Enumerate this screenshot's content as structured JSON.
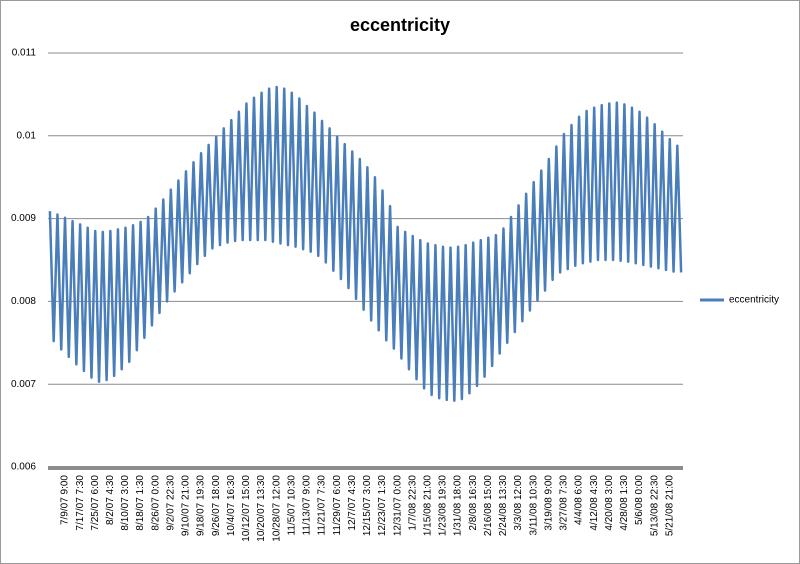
{
  "chart_data": {
    "type": "line",
    "title": "eccentricity",
    "categories": [
      null,
      null,
      null,
      null,
      "7/9/07 9:00",
      null,
      null,
      null,
      "7/17/07 7:30",
      null,
      null,
      null,
      "7/25/07 6:00",
      null,
      null,
      null,
      "8/2/07 4:30",
      null,
      null,
      null,
      "8/10/07 3:00",
      null,
      null,
      null,
      "8/18/07 1:30",
      null,
      null,
      null,
      "8/26/07 0:00",
      null,
      null,
      null,
      "9/2/07 22:30",
      null,
      null,
      null,
      "9/10/07 21:00",
      null,
      null,
      null,
      "9/18/07 19:30",
      null,
      null,
      null,
      "9/26/07 18:00",
      null,
      null,
      null,
      "10/4/07 16:30",
      null,
      null,
      null,
      "10/12/07 15:00",
      null,
      null,
      null,
      "10/20/07 13:30",
      null,
      null,
      null,
      "10/28/07 12:00",
      null,
      null,
      null,
      "11/5/07 10:30",
      null,
      null,
      null,
      "11/13/07 9:00",
      null,
      null,
      null,
      "11/21/07 7:30",
      null,
      null,
      null,
      "11/29/07 6:00",
      null,
      null,
      null,
      "12/7/07 4:30",
      null,
      null,
      null,
      "12/15/07 3:00",
      null,
      null,
      null,
      "12/23/07 1:30",
      null,
      null,
      null,
      "12/31/07 0:00",
      null,
      null,
      null,
      "1/7/08 22:30",
      null,
      null,
      null,
      "1/15/08 21:00",
      null,
      null,
      null,
      "1/23/08 19:30",
      null,
      null,
      null,
      "1/31/08 18:00",
      null,
      null,
      null,
      "2/8/08 16:30",
      null,
      null,
      null,
      "2/16/08 15:00",
      null,
      null,
      null,
      "2/24/08 13:30",
      null,
      null,
      null,
      "3/3/08 12:00",
      null,
      null,
      null,
      "3/11/08 10:30",
      null,
      null,
      null,
      "3/19/08 9:00",
      null,
      null,
      null,
      "3/27/08 7:30",
      null,
      null,
      null,
      "4/4/08 6:00",
      null,
      null,
      null,
      "4/12/08 4:30",
      null,
      null,
      null,
      "4/20/08 3:00",
      null,
      null,
      null,
      "4/28/08 1:30",
      null,
      null,
      null,
      "5/6/08 0:00",
      null,
      null,
      null,
      "5/13/08 22:30",
      null,
      null,
      null,
      "5/21/08 21:00",
      null,
      null,
      null
    ],
    "series": [
      {
        "name": "eccentricity",
        "color": "#4a7ebb",
        "values": [
          0.00909,
          0.00752,
          0.00905,
          0.00742,
          0.00901,
          0.00733,
          0.00897,
          0.00724,
          0.00893,
          0.00716,
          0.00889,
          0.00708,
          0.00885,
          0.00703,
          0.00884,
          0.00705,
          0.00885,
          0.0071,
          0.00887,
          0.00718,
          0.00889,
          0.00727,
          0.00892,
          0.00741,
          0.00896,
          0.00756,
          0.00902,
          0.00771,
          0.00912,
          0.00786,
          0.00923,
          0.008,
          0.00935,
          0.00812,
          0.00946,
          0.00823,
          0.00957,
          0.00834,
          0.00968,
          0.00845,
          0.00979,
          0.00855,
          0.00989,
          0.00864,
          0.00999,
          0.00868,
          0.01009,
          0.00871,
          0.01019,
          0.00873,
          0.01029,
          0.00874,
          0.01039,
          0.00874,
          0.01046,
          0.00874,
          0.01052,
          0.00874,
          0.01057,
          0.00872,
          0.01059,
          0.0087,
          0.01057,
          0.00868,
          0.01052,
          0.00866,
          0.01045,
          0.00863,
          0.01036,
          0.0086,
          0.01028,
          0.00855,
          0.01018,
          0.00847,
          0.01009,
          0.00837,
          0.00999,
          0.00827,
          0.0099,
          0.00816,
          0.00981,
          0.00803,
          0.00972,
          0.0079,
          0.00962,
          0.00777,
          0.0095,
          0.00765,
          0.00934,
          0.00753,
          0.00915,
          0.00743,
          0.0089,
          0.00731,
          0.00884,
          0.00718,
          0.00879,
          0.00706,
          0.00874,
          0.00695,
          0.0087,
          0.00687,
          0.00868,
          0.00683,
          0.00866,
          0.00681,
          0.00865,
          0.0068,
          0.00866,
          0.00682,
          0.00868,
          0.00689,
          0.00871,
          0.00698,
          0.00874,
          0.00709,
          0.00877,
          0.00722,
          0.0088,
          0.00737,
          0.00888,
          0.0075,
          0.00902,
          0.00763,
          0.00916,
          0.00776,
          0.0093,
          0.00789,
          0.00944,
          0.00801,
          0.00958,
          0.00813,
          0.00972,
          0.00826,
          0.00987,
          0.00835,
          0.01002,
          0.00839,
          0.01013,
          0.00843,
          0.01023,
          0.00846,
          0.0103,
          0.00848,
          0.01034,
          0.0085,
          0.01037,
          0.0085,
          0.01039,
          0.0085,
          0.0104,
          0.00849,
          0.01038,
          0.00848,
          0.01034,
          0.00846,
          0.01029,
          0.00844,
          0.01022,
          0.00842,
          0.01014,
          0.0084,
          0.01005,
          0.00838,
          0.00996,
          0.00836,
          0.00988,
          0.00835
        ]
      }
    ],
    "ylim": [
      0.006,
      0.011
    ],
    "yticks": [
      0.006,
      0.007,
      0.008,
      0.009,
      0.01,
      0.011
    ],
    "grid": true,
    "legend": "right"
  }
}
